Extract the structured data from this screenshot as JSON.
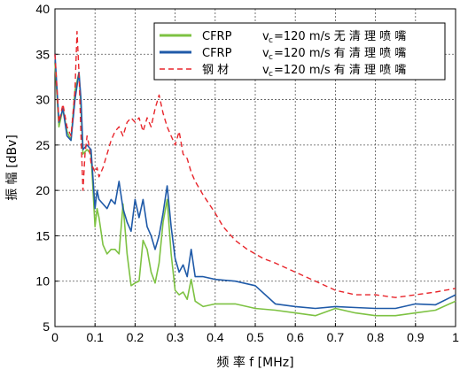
{
  "chart_data": {
    "type": "line",
    "xlabel": "频  率 f [MHz]",
    "ylabel": "振 幅 [dBv]",
    "xlim": [
      0,
      1
    ],
    "ylim": [
      5,
      40
    ],
    "xticks": [
      "0",
      "0.1",
      "0.2",
      "0.3",
      "0.4",
      "0.5",
      "0.6",
      "0.7",
      "0.8",
      "0.9",
      "1"
    ],
    "yticks": [
      "5",
      "10",
      "15",
      "20",
      "25",
      "30",
      "35",
      "40"
    ],
    "grid": true,
    "legend_position": "top-right",
    "series": [
      {
        "name": "CFRP",
        "vc_label": "v",
        "vc_sub": "c",
        "condition": "=120 m/s 无 清 理 喷 嘴",
        "color": "#7dc242",
        "dash": "solid",
        "x": [
          0,
          0.01,
          0.02,
          0.03,
          0.04,
          0.05,
          0.06,
          0.065,
          0.07,
          0.08,
          0.09,
          0.1,
          0.105,
          0.11,
          0.12,
          0.13,
          0.14,
          0.15,
          0.16,
          0.17,
          0.18,
          0.19,
          0.2,
          0.21,
          0.22,
          0.23,
          0.24,
          0.25,
          0.26,
          0.27,
          0.28,
          0.29,
          0.3,
          0.31,
          0.32,
          0.33,
          0.34,
          0.35,
          0.37,
          0.4,
          0.45,
          0.5,
          0.55,
          0.6,
          0.65,
          0.7,
          0.75,
          0.8,
          0.85,
          0.9,
          0.95,
          1
        ],
        "y": [
          34,
          27,
          29,
          26.5,
          25.5,
          31,
          33,
          29,
          24,
          24.5,
          24,
          16,
          18,
          17,
          14,
          13,
          13.5,
          13.5,
          13,
          18.5,
          13,
          9.5,
          9.8,
          10,
          14.5,
          13.5,
          11,
          9.8,
          12,
          16.5,
          19,
          13,
          9,
          8.5,
          8.8,
          8,
          10.2,
          7.8,
          7.2,
          7.5,
          7.5,
          7,
          6.8,
          6.5,
          6.2,
          7,
          6.5,
          6.2,
          6.2,
          6.5,
          6.8,
          7.8
        ]
      },
      {
        "name": "CFRP",
        "vc_label": "v",
        "vc_sub": "c",
        "condition": "=120 m/s 有 清 理 喷 嘴",
        "color": "#1f5aa8",
        "dash": "solid",
        "x": [
          0,
          0.01,
          0.02,
          0.03,
          0.04,
          0.05,
          0.06,
          0.065,
          0.07,
          0.08,
          0.09,
          0.1,
          0.105,
          0.11,
          0.12,
          0.13,
          0.14,
          0.15,
          0.16,
          0.17,
          0.18,
          0.19,
          0.2,
          0.21,
          0.22,
          0.23,
          0.24,
          0.25,
          0.26,
          0.27,
          0.28,
          0.29,
          0.3,
          0.31,
          0.32,
          0.33,
          0.34,
          0.35,
          0.37,
          0.4,
          0.45,
          0.5,
          0.55,
          0.6,
          0.65,
          0.7,
          0.75,
          0.8,
          0.85,
          0.9,
          0.95,
          1
        ],
        "y": [
          35,
          27.5,
          29,
          26,
          25.5,
          30,
          33,
          30,
          24.5,
          25,
          24.5,
          18,
          20,
          19,
          18.5,
          18,
          19,
          18.5,
          21,
          18,
          16.5,
          15.5,
          19,
          17,
          19,
          16,
          15,
          13.5,
          15,
          17.5,
          20.5,
          16,
          12.5,
          11,
          11.8,
          10.5,
          13.5,
          10.5,
          10.5,
          10.2,
          10,
          9.5,
          7.5,
          7.2,
          7,
          7.2,
          7.1,
          7,
          7,
          7.5,
          7.4,
          8.5
        ]
      },
      {
        "name": "钢  材",
        "vc_label": "v",
        "vc_sub": "c",
        "condition": "=120 m/s 有 清 理 喷 嘴",
        "color": "#e8252b",
        "dash": "dashed",
        "x": [
          0,
          0.01,
          0.02,
          0.03,
          0.04,
          0.05,
          0.055,
          0.06,
          0.065,
          0.07,
          0.075,
          0.08,
          0.085,
          0.09,
          0.1,
          0.105,
          0.11,
          0.12,
          0.13,
          0.14,
          0.15,
          0.16,
          0.17,
          0.18,
          0.19,
          0.2,
          0.21,
          0.22,
          0.23,
          0.24,
          0.25,
          0.26,
          0.27,
          0.28,
          0.29,
          0.3,
          0.31,
          0.32,
          0.33,
          0.34,
          0.35,
          0.37,
          0.4,
          0.42,
          0.45,
          0.48,
          0.5,
          0.52,
          0.55,
          0.6,
          0.65,
          0.7,
          0.75,
          0.8,
          0.85,
          0.9,
          0.95,
          1
        ],
        "y": [
          35,
          27.5,
          29.5,
          27,
          26,
          31,
          37.5,
          33,
          26,
          20,
          24,
          26,
          25,
          23,
          22,
          22.5,
          21.5,
          22.5,
          24,
          25.5,
          26.5,
          27,
          26,
          27.5,
          28,
          27.5,
          28,
          26.5,
          28,
          27,
          29,
          30.5,
          28.5,
          27,
          26,
          25,
          26.5,
          24,
          23.5,
          22,
          21,
          19.5,
          17.5,
          16,
          14.5,
          13.5,
          13,
          12.5,
          12,
          11,
          10,
          9,
          8.5,
          8.5,
          8.2,
          8.5,
          8.8,
          9.2
        ]
      }
    ]
  }
}
